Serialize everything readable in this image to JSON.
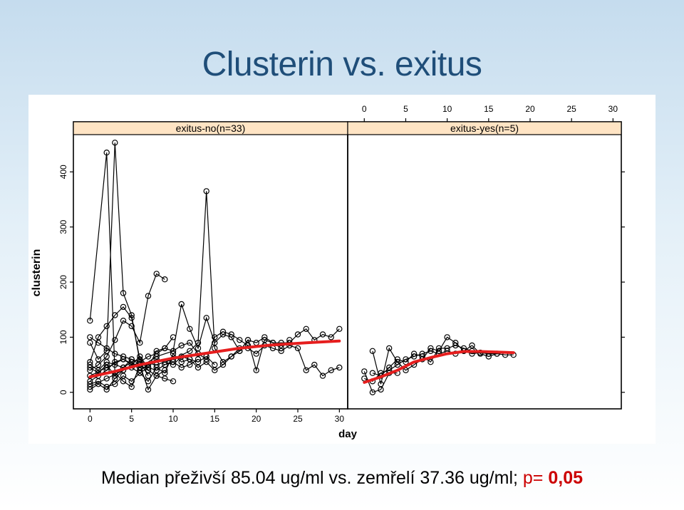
{
  "slide": {
    "title": "Clusterin vs. exitus",
    "caption": {
      "text": "Median přeživší 85.04 ug/ml vs. zemřelí 37.36 ug/ml; ",
      "p_label": "p=",
      "p_value": "0,05"
    }
  },
  "colors": {
    "title": "#1f4e79",
    "strip": "#ffe4c4",
    "trend": "#e61e1e",
    "p_value": "#cc0000"
  },
  "chart_data": {
    "type": "line",
    "ylabel": "clusterin",
    "xlabel": "day",
    "xlim": [
      -2,
      31
    ],
    "ylim": [
      -30,
      465
    ],
    "xticks": [
      0,
      5,
      10,
      15,
      20,
      25,
      30
    ],
    "yticks": [
      0,
      100,
      200,
      300,
      400
    ],
    "panels": [
      {
        "strip": "exitus-no(n=33)",
        "trend": [
          [
            0,
            28
          ],
          [
            3,
            38
          ],
          [
            6,
            50
          ],
          [
            10,
            62
          ],
          [
            14,
            71
          ],
          [
            18,
            80
          ],
          [
            22,
            86
          ],
          [
            26,
            90
          ],
          [
            30,
            93
          ]
        ],
        "series": [
          [
            [
              0,
              130
            ],
            [
              2,
              435
            ],
            [
              3,
              35
            ],
            [
              4,
              20
            ],
            [
              5,
              10
            ],
            [
              6,
              50
            ],
            [
              7,
              5
            ],
            [
              8,
              30
            ],
            [
              9,
              40
            ]
          ],
          [
            [
              0,
              90
            ],
            [
              1,
              60
            ],
            [
              2,
              75
            ],
            [
              3,
              453
            ],
            [
              4,
              180
            ],
            [
              5,
              140
            ],
            [
              6,
              55
            ],
            [
              7,
              30
            ]
          ],
          [
            [
              0,
              55
            ],
            [
              1,
              100
            ],
            [
              2,
              120
            ],
            [
              3,
              140
            ],
            [
              4,
              155
            ],
            [
              5,
              135
            ],
            [
              6,
              60
            ],
            [
              7,
              40
            ]
          ],
          [
            [
              0,
              40
            ],
            [
              1,
              50
            ],
            [
              2,
              65
            ],
            [
              3,
              95
            ],
            [
              4,
              130
            ],
            [
              5,
              120
            ],
            [
              6,
              90
            ],
            [
              7,
              175
            ],
            [
              8,
              215
            ],
            [
              9,
              205
            ]
          ],
          [
            [
              0,
              20
            ],
            [
              1,
              30
            ],
            [
              2,
              40
            ],
            [
              3,
              55
            ],
            [
              4,
              60
            ],
            [
              5,
              50
            ],
            [
              6,
              65
            ],
            [
              7,
              45
            ],
            [
              8,
              75
            ],
            [
              9,
              80
            ],
            [
              10,
              100
            ]
          ],
          [
            [
              0,
              100
            ],
            [
              1,
              90
            ],
            [
              2,
              80
            ],
            [
              3,
              70
            ],
            [
              4,
              65
            ],
            [
              5,
              60
            ],
            [
              6,
              50
            ],
            [
              7,
              40
            ],
            [
              8,
              30
            ],
            [
              9,
              25
            ],
            [
              10,
              20
            ]
          ],
          [
            [
              0,
              30
            ],
            [
              2,
              45
            ],
            [
              4,
              60
            ],
            [
              6,
              45
            ],
            [
              8,
              65
            ],
            [
              10,
              75
            ],
            [
              11,
              160
            ],
            [
              12,
              115
            ],
            [
              13,
              80
            ],
            [
              14,
              135
            ],
            [
              15,
              90
            ],
            [
              16,
              105
            ],
            [
              17,
              100
            ],
            [
              18,
              75
            ],
            [
              19,
              95
            ],
            [
              20,
              40
            ],
            [
              21,
              95
            ],
            [
              22,
              90
            ],
            [
              23,
              90
            ],
            [
              24,
              90
            ],
            [
              25,
              105
            ],
            [
              26,
              115
            ],
            [
              27,
              95
            ],
            [
              28,
              105
            ],
            [
              29,
              100
            ],
            [
              30,
              115
            ]
          ],
          [
            [
              0,
              10
            ],
            [
              2,
              25
            ],
            [
              4,
              40
            ],
            [
              6,
              55
            ],
            [
              8,
              50
            ],
            [
              10,
              60
            ],
            [
              12,
              75
            ],
            [
              13,
              90
            ],
            [
              14,
              365
            ],
            [
              15,
              80
            ],
            [
              16,
              55
            ],
            [
              17,
              65
            ],
            [
              18,
              80
            ],
            [
              19,
              80
            ],
            [
              20,
              70
            ],
            [
              21,
              85
            ],
            [
              22,
              80
            ],
            [
              23,
              75
            ],
            [
              24,
              85
            ],
            [
              25,
              80
            ],
            [
              26,
              40
            ],
            [
              27,
              50
            ],
            [
              28,
              30
            ],
            [
              29,
              40
            ],
            [
              30,
              45
            ]
          ],
          [
            [
              0,
              5
            ],
            [
              1,
              15
            ],
            [
              2,
              5
            ],
            [
              3,
              25
            ],
            [
              4,
              40
            ],
            [
              5,
              45
            ],
            [
              6,
              35
            ],
            [
              7,
              20
            ],
            [
              8,
              45
            ],
            [
              9,
              35
            ],
            [
              10,
              70
            ],
            [
              11,
              55
            ],
            [
              12,
              60
            ],
            [
              13,
              45
            ],
            [
              14,
              55
            ],
            [
              15,
              40
            ],
            [
              16,
              50
            ],
            [
              17,
              65
            ],
            [
              18,
              75
            ],
            [
              19,
              95
            ],
            [
              20,
              90
            ],
            [
              21,
              100
            ],
            [
              22,
              90
            ],
            [
              23,
              80
            ],
            [
              24,
              95
            ]
          ],
          [
            [
              0,
              50
            ],
            [
              1,
              40
            ],
            [
              2,
              55
            ],
            [
              3,
              50
            ],
            [
              4,
              45
            ],
            [
              5,
              60
            ],
            [
              6,
              55
            ],
            [
              7,
              65
            ],
            [
              8,
              70
            ],
            [
              9,
              80
            ],
            [
              10,
              75
            ],
            [
              11,
              85
            ],
            [
              12,
              90
            ],
            [
              13,
              70
            ],
            [
              14,
              60
            ],
            [
              15,
              100
            ],
            [
              16,
              110
            ],
            [
              17,
              105
            ],
            [
              18,
              95
            ],
            [
              19,
              85
            ]
          ],
          [
            [
              0,
              45
            ],
            [
              1,
              35
            ],
            [
              2,
              50
            ],
            [
              3,
              30
            ],
            [
              4,
              45
            ],
            [
              5,
              55
            ],
            [
              6,
              40
            ],
            [
              7,
              50
            ],
            [
              8,
              60
            ],
            [
              9,
              55
            ],
            [
              10,
              50
            ],
            [
              11,
              65
            ],
            [
              12,
              60
            ],
            [
              13,
              55
            ],
            [
              14,
              65
            ],
            [
              15,
              50
            ]
          ],
          [
            [
              0,
              15
            ],
            [
              1,
              20
            ],
            [
              2,
              10
            ],
            [
              3,
              15
            ],
            [
              4,
              30
            ],
            [
              5,
              20
            ],
            [
              6,
              35
            ],
            [
              7,
              45
            ],
            [
              8,
              40
            ],
            [
              9,
              50
            ],
            [
              10,
              55
            ],
            [
              11,
              45
            ],
            [
              12,
              50
            ],
            [
              13,
              60
            ]
          ]
        ]
      },
      {
        "strip": "exitus-yes(n=5)",
        "trend": [
          [
            0,
            18
          ],
          [
            2,
            28
          ],
          [
            4,
            40
          ],
          [
            6,
            55
          ],
          [
            8,
            63
          ],
          [
            10,
            70
          ],
          [
            12,
            74
          ],
          [
            14,
            74
          ],
          [
            16,
            73
          ],
          [
            18,
            72
          ]
        ],
        "series": [
          [
            [
              0,
              38
            ],
            [
              1,
              0
            ],
            [
              2,
              5
            ],
            [
              3,
              35
            ],
            [
              4,
              35
            ]
          ],
          [
            [
              1,
              75
            ],
            [
              2,
              15
            ],
            [
              3,
              80
            ],
            [
              4,
              55
            ],
            [
              5,
              40
            ],
            [
              6,
              50
            ],
            [
              7,
              60
            ],
            [
              8,
              80
            ],
            [
              9,
              75
            ],
            [
              10,
              100
            ],
            [
              11,
              90
            ],
            [
              12,
              75
            ],
            [
              13,
              85
            ],
            [
              14,
              70
            ],
            [
              15,
              65
            ],
            [
              16,
              70
            ]
          ],
          [
            [
              1,
              35
            ],
            [
              2,
              30
            ],
            [
              3,
              45
            ],
            [
              4,
              60
            ],
            [
              5,
              55
            ],
            [
              6,
              70
            ],
            [
              7,
              65
            ],
            [
              8,
              55
            ],
            [
              9,
              80
            ],
            [
              10,
              80
            ],
            [
              11,
              85
            ],
            [
              12,
              80
            ],
            [
              13,
              75
            ]
          ],
          [
            [
              0,
              25
            ],
            [
              1,
              20
            ],
            [
              2,
              35
            ],
            [
              3,
              40
            ],
            [
              4,
              50
            ],
            [
              5,
              60
            ],
            [
              6,
              65
            ],
            [
              7,
              70
            ],
            [
              8,
              75
            ],
            [
              9,
              70
            ],
            [
              10,
              75
            ],
            [
              11,
              70
            ],
            [
              12,
              75
            ],
            [
              13,
              70
            ],
            [
              14,
              72
            ],
            [
              15,
              70
            ],
            [
              16,
              70
            ],
            [
              17,
              68
            ],
            [
              18,
              68
            ]
          ]
        ]
      }
    ]
  }
}
